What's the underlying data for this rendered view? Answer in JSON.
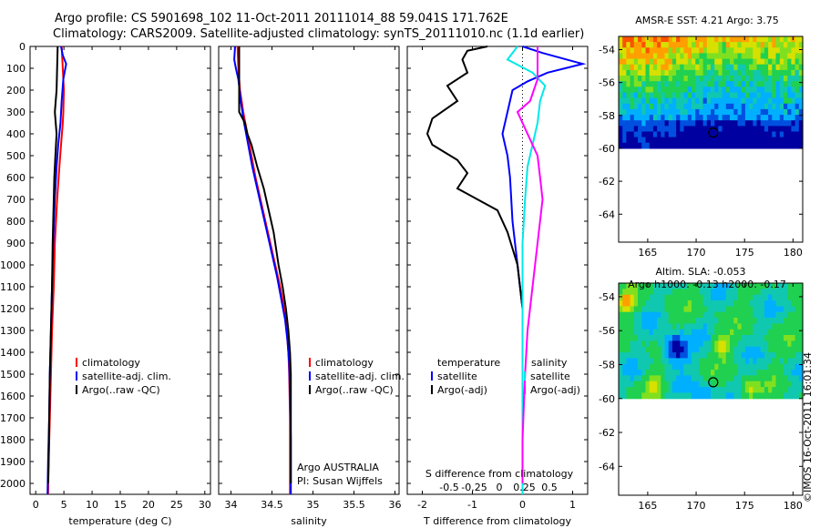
{
  "header": {
    "line1": "Argo profile: CS 5901698_102 11-Oct-2011 20111014_88 59.041S 171.762E",
    "line2": "Climatology: CARS2009. Satellite-adjusted climatology: synTS_20111010.nc (1.1d earlier)"
  },
  "watermark": "©IMOS 16-Oct-2011 16:01:34",
  "colors": {
    "climatology": "#ff0000",
    "satellite": "#0000ff",
    "argo": "#000000",
    "salinity_satellite": "#00e8e8",
    "salinity_argo": "#ff00ff"
  },
  "chart_data": [
    {
      "type": "line",
      "panel": "temperature",
      "xlabel": "temperature (deg C)",
      "ylabel": "",
      "xlim": [
        -1,
        31
      ],
      "ylim": [
        2050,
        0
      ],
      "xticks": [
        "0",
        "5",
        "10",
        "15",
        "20",
        "25",
        "30"
      ],
      "yticks": [
        "0",
        "100",
        "200",
        "300",
        "400",
        "500",
        "600",
        "700",
        "800",
        "900",
        "1000",
        "1100",
        "1200",
        "1300",
        "1400",
        "1500",
        "1600",
        "1700",
        "1800",
        "1900",
        "2000"
      ],
      "legend": [
        "climatology",
        "satellite-adj. clim.",
        "Argo(..raw -QC)"
      ],
      "series": [
        {
          "name": "climatology",
          "color": "#ff0000",
          "points": [
            [
              4.6,
              0
            ],
            [
              4.8,
              100
            ],
            [
              5.0,
              200
            ],
            [
              4.9,
              300
            ],
            [
              4.8,
              350
            ],
            [
              4.5,
              450
            ],
            [
              4.2,
              550
            ],
            [
              3.8,
              700
            ],
            [
              3.4,
              900
            ],
            [
              3.2,
              1100
            ],
            [
              2.9,
              1300
            ],
            [
              2.7,
              1500
            ],
            [
              2.5,
              1700
            ],
            [
              2.3,
              1900
            ],
            [
              2.2,
              2050
            ]
          ]
        },
        {
          "name": "satellite-adj. clim.",
          "color": "#0000ff",
          "points": [
            [
              4.5,
              0
            ],
            [
              4.8,
              40
            ],
            [
              5.4,
              80
            ],
            [
              4.9,
              150
            ],
            [
              4.6,
              250
            ],
            [
              4.4,
              350
            ],
            [
              4.0,
              450
            ],
            [
              3.7,
              550
            ],
            [
              3.4,
              700
            ],
            [
              3.1,
              900
            ],
            [
              2.9,
              1100
            ],
            [
              2.7,
              1300
            ],
            [
              2.5,
              1500
            ],
            [
              2.4,
              1700
            ],
            [
              2.2,
              1900
            ],
            [
              2.1,
              2050
            ]
          ]
        },
        {
          "name": "Argo(..raw -QC)",
          "color": "#000000",
          "points": [
            [
              3.9,
              0
            ],
            [
              3.8,
              100
            ],
            [
              3.7,
              200
            ],
            [
              3.4,
              300
            ],
            [
              3.7,
              400
            ],
            [
              3.5,
              500
            ],
            [
              3.3,
              600
            ],
            [
              3.2,
              700
            ],
            [
              3.0,
              900
            ],
            [
              2.9,
              1100
            ],
            [
              2.7,
              1300
            ],
            [
              2.5,
              1500
            ],
            [
              2.4,
              1700
            ],
            [
              2.3,
              1900
            ],
            [
              2.2,
              2000
            ]
          ]
        }
      ]
    },
    {
      "type": "line",
      "panel": "salinity",
      "xlabel": "salinity",
      "xlim": [
        33.85,
        36.05
      ],
      "ylim": [
        2050,
        0
      ],
      "xticks": [
        "34",
        "34.5",
        "35",
        "35.5",
        "36"
      ],
      "legend": [
        "climatology",
        "satellite-adj. clim.",
        "Argo(..raw -QC)"
      ],
      "annotations": [
        "Argo AUSTRALIA",
        "PI: Susan Wijffels"
      ],
      "series": [
        {
          "name": "climatology",
          "color": "#ff0000",
          "points": [
            [
              34.08,
              0
            ],
            [
              34.09,
              100
            ],
            [
              34.11,
              200
            ],
            [
              34.15,
              300
            ],
            [
              34.2,
              400
            ],
            [
              34.25,
              500
            ],
            [
              34.3,
              600
            ],
            [
              34.36,
              700
            ],
            [
              34.42,
              800
            ],
            [
              34.48,
              900
            ],
            [
              34.54,
              1000
            ],
            [
              34.6,
              1100
            ],
            [
              34.65,
              1200
            ],
            [
              34.68,
              1300
            ],
            [
              34.7,
              1400
            ],
            [
              34.71,
              1500
            ],
            [
              34.72,
              1700
            ],
            [
              34.72,
              1900
            ],
            [
              34.72,
              2050
            ]
          ]
        },
        {
          "name": "satellite-adj. clim.",
          "color": "#0000ff",
          "points": [
            [
              34.05,
              0
            ],
            [
              34.04,
              60
            ],
            [
              34.06,
              100
            ],
            [
              34.09,
              150
            ],
            [
              34.12,
              250
            ],
            [
              34.16,
              350
            ],
            [
              34.21,
              450
            ],
            [
              34.26,
              550
            ],
            [
              34.32,
              650
            ],
            [
              34.38,
              750
            ],
            [
              34.44,
              850
            ],
            [
              34.5,
              950
            ],
            [
              34.56,
              1050
            ],
            [
              34.61,
              1150
            ],
            [
              34.66,
              1250
            ],
            [
              34.69,
              1350
            ],
            [
              34.71,
              1450
            ],
            [
              34.72,
              1600
            ],
            [
              34.73,
              1800
            ],
            [
              34.73,
              2050
            ]
          ]
        },
        {
          "name": "Argo(..raw -QC)",
          "color": "#000000",
          "points": [
            [
              34.1,
              0
            ],
            [
              34.1,
              100
            ],
            [
              34.1,
              250
            ],
            [
              34.1,
              300
            ],
            [
              34.17,
              350
            ],
            [
              34.2,
              400
            ],
            [
              34.25,
              450
            ],
            [
              34.32,
              550
            ],
            [
              34.4,
              650
            ],
            [
              34.46,
              750
            ],
            [
              34.52,
              850
            ],
            [
              34.58,
              1000
            ],
            [
              34.63,
              1100
            ],
            [
              34.67,
              1200
            ],
            [
              34.7,
              1300
            ],
            [
              34.72,
              1400
            ],
            [
              34.73,
              1500
            ],
            [
              34.73,
              1700
            ],
            [
              34.73,
              1900
            ],
            [
              34.73,
              2000
            ]
          ]
        }
      ]
    },
    {
      "type": "line",
      "panel": "differences",
      "xlabel": "T difference from climatology",
      "xlabel2": "S difference from climatology",
      "xlim": [
        -2.3,
        1.3
      ],
      "ylim": [
        2050,
        0
      ],
      "xticks": [
        "-2",
        "-1",
        "0",
        "1"
      ],
      "xticks2": [
        "-0.5",
        "-0.25",
        "0",
        "0.25",
        "0.5"
      ],
      "legend_temperature_title": "temperature",
      "legend_salinity_title": "salinity",
      "legend_temperature": [
        "satellite",
        "Argo(-adj)"
      ],
      "legend_salinity": [
        "satellite",
        "Argo(-adj)"
      ],
      "series": [
        {
          "name": "temperature satellite",
          "color": "#0000ff",
          "points": [
            [
              0,
              0
            ],
            [
              0.4,
              30
            ],
            [
              1.2,
              80
            ],
            [
              0.5,
              120
            ],
            [
              0.1,
              160
            ],
            [
              -0.2,
              200
            ],
            [
              -0.3,
              300
            ],
            [
              -0.4,
              400
            ],
            [
              -0.3,
              500
            ],
            [
              -0.25,
              600
            ],
            [
              -0.2,
              800
            ],
            [
              -0.1,
              1000
            ],
            [
              0,
              1200
            ],
            [
              0,
              1500
            ],
            [
              0,
              1800
            ],
            [
              0,
              2050
            ]
          ]
        },
        {
          "name": "temperature Argo(-adj)",
          "color": "#000000",
          "points": [
            [
              -0.7,
              0
            ],
            [
              -1.1,
              20
            ],
            [
              -1.2,
              60
            ],
            [
              -1.1,
              120
            ],
            [
              -1.5,
              180
            ],
            [
              -1.3,
              250
            ],
            [
              -1.8,
              330
            ],
            [
              -1.9,
              400
            ],
            [
              -1.8,
              450
            ],
            [
              -1.3,
              520
            ],
            [
              -1.1,
              580
            ],
            [
              -1.3,
              650
            ],
            [
              -0.9,
              700
            ],
            [
              -0.5,
              750
            ],
            [
              -0.3,
              850
            ],
            [
              -0.1,
              1000
            ],
            [
              0,
              1200
            ],
            [
              0,
              1600
            ],
            [
              0,
              2000
            ]
          ]
        },
        {
          "name": "salinity satellite",
          "color": "#00e8e8",
          "points": [
            [
              -0.1,
              0
            ],
            [
              -0.3,
              60
            ],
            [
              0.2,
              120
            ],
            [
              0.45,
              180
            ],
            [
              0.35,
              250
            ],
            [
              0.3,
              350
            ],
            [
              0.2,
              450
            ],
            [
              0.1,
              550
            ],
            [
              0.05,
              700
            ],
            [
              0,
              900
            ],
            [
              0,
              1200
            ],
            [
              0,
              1600
            ],
            [
              0,
              2050
            ]
          ]
        },
        {
          "name": "salinity Argo(-adj)",
          "color": "#ff00ff",
          "points": [
            [
              0.3,
              0
            ],
            [
              0.3,
              150
            ],
            [
              0.15,
              250
            ],
            [
              -0.1,
              300
            ],
            [
              0.1,
              400
            ],
            [
              0.3,
              500
            ],
            [
              0.35,
              600
            ],
            [
              0.4,
              700
            ],
            [
              0.3,
              900
            ],
            [
              0.2,
              1100
            ],
            [
              0.1,
              1300
            ],
            [
              0.05,
              1500
            ],
            [
              0,
              1800
            ],
            [
              0,
              2000
            ]
          ]
        }
      ]
    },
    {
      "type": "heatmap",
      "panel": "AMSR-E SST",
      "title": "AMSR-E SST: 4.21  Argo: 3.75",
      "xlim": [
        162,
        181
      ],
      "ylim": [
        -65.7,
        -53.2
      ],
      "xticks": [
        "165",
        "170",
        "175",
        "180"
      ],
      "yticks": [
        "-54",
        "-56",
        "-58",
        "-60",
        "-62",
        "-64"
      ],
      "marker": [
        171.762,
        -59.041
      ]
    },
    {
      "type": "heatmap",
      "panel": "Altim. SLA",
      "title": "Altim. SLA: -0.053",
      "subtitle": "Argo h1000: -0.13 h2000: -0.17",
      "xlim": [
        162,
        181
      ],
      "ylim": [
        -65.7,
        -53.2
      ],
      "xticks": [
        "165",
        "170",
        "175",
        "180"
      ],
      "yticks": [
        "-54",
        "-56",
        "-58",
        "-60",
        "-62",
        "-64"
      ],
      "marker": [
        171.762,
        -59.041
      ]
    }
  ]
}
